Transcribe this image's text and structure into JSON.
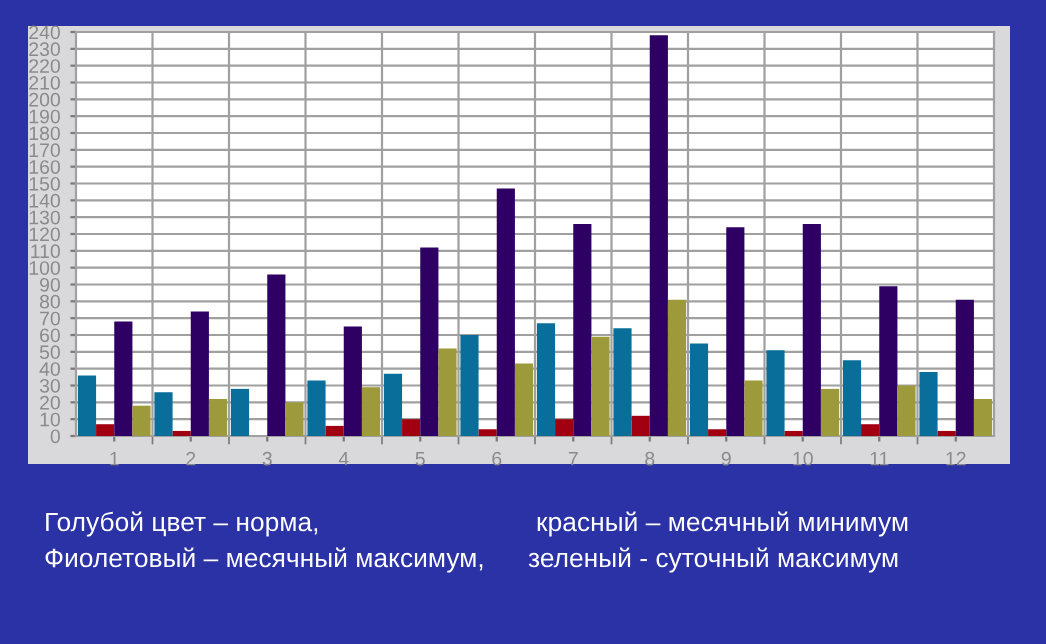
{
  "chart_data": {
    "type": "bar",
    "categories": [
      "1",
      "2",
      "3",
      "4",
      "5",
      "6",
      "7",
      "8",
      "9",
      "10",
      "11",
      "12"
    ],
    "series": [
      {
        "color": "#0a6e9a",
        "values": [
          36,
          26,
          28,
          33,
          37,
          60,
          67,
          64,
          55,
          51,
          45,
          38
        ]
      },
      {
        "color": "#a00010",
        "values": [
          7,
          3,
          0,
          6,
          10,
          4,
          10,
          12,
          4,
          3,
          7,
          3
        ]
      },
      {
        "color": "#2e0063",
        "values": [
          68,
          74,
          96,
          65,
          112,
          147,
          126,
          238,
          124,
          126,
          89,
          81
        ]
      },
      {
        "color": "#9c9a3a",
        "values": [
          18,
          22,
          20,
          29,
          52,
          43,
          59,
          81,
          33,
          28,
          30,
          22
        ]
      }
    ],
    "ylim": [
      0,
      240
    ],
    "yticks": [
      0,
      10,
      20,
      30,
      40,
      50,
      60,
      70,
      80,
      90,
      100,
      110,
      120,
      130,
      140,
      150,
      160,
      170,
      180,
      190,
      200,
      210,
      220,
      230,
      240
    ],
    "grid": true,
    "annotations": [
      "Голубой цвет – норма,",
      "красный – месячный минимум",
      "Фиолетовый – месячный максимум,",
      "зеленый - суточный максимум"
    ]
  }
}
